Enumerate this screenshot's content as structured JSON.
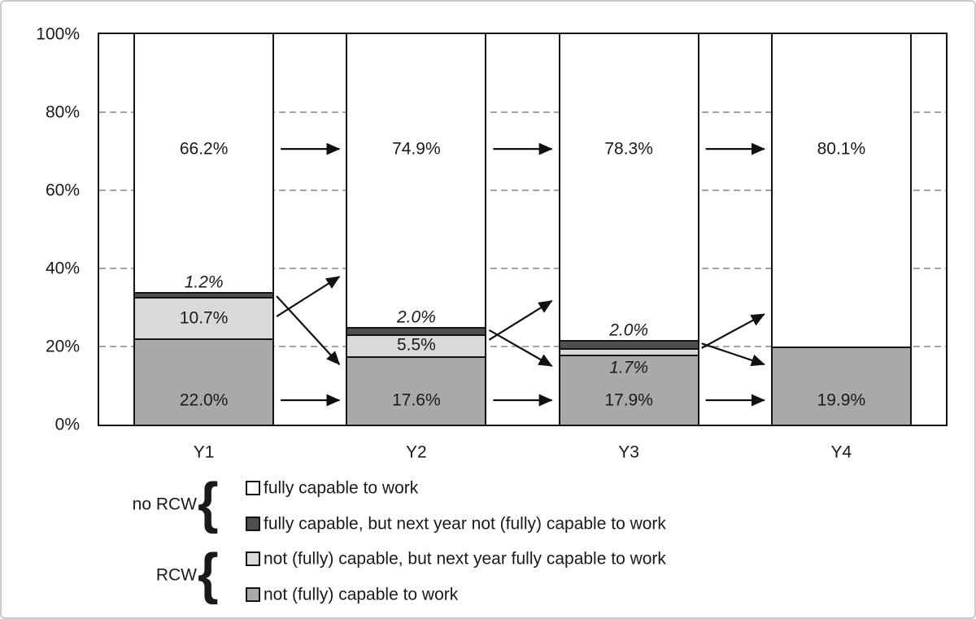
{
  "chart_data": {
    "type": "bar",
    "subtype": "stacked-100-percent",
    "title": "",
    "xlabel": "",
    "ylabel": "",
    "ylim": [
      0,
      100
    ],
    "grid": "dashed-horizontal",
    "gridlines_pct": [
      20,
      40,
      60,
      80
    ],
    "y_axis_ticks": [
      {
        "label": "0%",
        "pct": 0
      },
      {
        "label": "20%",
        "pct": 20
      },
      {
        "label": "40%",
        "pct": 40
      },
      {
        "label": "60%",
        "pct": 60
      },
      {
        "label": "80%",
        "pct": 80
      },
      {
        "label": "100%",
        "pct": 100
      }
    ],
    "categories": [
      "Y1",
      "Y2",
      "Y3",
      "Y4"
    ],
    "series": [
      {
        "key": "capable",
        "name": "fully capable to work",
        "color": "#ffffff",
        "values": [
          66.2,
          74.9,
          78.3,
          80.1
        ]
      },
      {
        "key": "to_not_capable",
        "name": "fully capable, but next year not (fully) capable to work",
        "color": "#4f4f4f",
        "values": [
          1.2,
          2.0,
          2.0,
          null
        ]
      },
      {
        "key": "to_capable",
        "name": "not (fully) capable, but next year fully capable to work",
        "color": "#d9d9d9",
        "values": [
          10.7,
          5.5,
          1.7,
          null
        ]
      },
      {
        "key": "not_capable",
        "name": "not (fully) capable to work",
        "color": "#a9a9a9",
        "values": [
          22.0,
          17.6,
          17.9,
          19.9
        ]
      }
    ],
    "colors": {
      "capable": "#ffffff",
      "to_not_capable": "#4f4f4f",
      "to_capable": "#d9d9d9",
      "not_capable": "#a9a9a9"
    },
    "bars": [
      {
        "category": "Y1",
        "segments": [
          {
            "series": "not_capable",
            "value": 22.0,
            "label": "22.0%",
            "placement": "bottom-band",
            "italic": false
          },
          {
            "series": "to_capable",
            "value": 10.7,
            "label": "10.7%",
            "placement": "center",
            "italic": false
          },
          {
            "series": "to_not_capable",
            "value": 1.2,
            "label": "1.2%",
            "placement": "above",
            "italic": true
          },
          {
            "series": "capable",
            "value": 66.2,
            "label": "66.2%",
            "placement": "top-band",
            "italic": false
          }
        ]
      },
      {
        "category": "Y2",
        "segments": [
          {
            "series": "not_capable",
            "value": 17.6,
            "label": "17.6%",
            "placement": "bottom-band",
            "italic": false
          },
          {
            "series": "to_capable",
            "value": 5.5,
            "label": "5.5%",
            "placement": "center",
            "italic": false
          },
          {
            "series": "to_not_capable",
            "value": 2.0,
            "label": "2.0%",
            "placement": "above",
            "italic": true
          },
          {
            "series": "capable",
            "value": 74.9,
            "label": "74.9%",
            "placement": "top-band",
            "italic": false
          }
        ]
      },
      {
        "category": "Y3",
        "segments": [
          {
            "series": "not_capable",
            "value": 17.9,
            "label": "17.9%",
            "placement": "bottom-band",
            "italic": false
          },
          {
            "series": "to_capable",
            "value": 1.7,
            "label": "1.7%",
            "placement": "below",
            "italic": true
          },
          {
            "series": "to_not_capable",
            "value": 2.0,
            "label": "2.0%",
            "placement": "above",
            "italic": true
          },
          {
            "series": "capable",
            "value": 78.3,
            "label": "78.3%",
            "placement": "top-band",
            "italic": false
          }
        ]
      },
      {
        "category": "Y4",
        "segments": [
          {
            "series": "not_capable",
            "value": 19.9,
            "label": "19.9%",
            "placement": "bottom-band",
            "italic": false
          },
          {
            "series": "capable",
            "value": 80.1,
            "label": "80.1%",
            "placement": "top-band",
            "italic": false
          }
        ]
      }
    ],
    "label_bands": {
      "top_pct": 70.6,
      "bottom_pct": 6.25
    },
    "arrows": [
      {
        "kind": "horizontal",
        "band": "top",
        "from_cat": 0,
        "to_cat": 1
      },
      {
        "kind": "horizontal",
        "band": "top",
        "from_cat": 1,
        "to_cat": 2
      },
      {
        "kind": "horizontal",
        "band": "top",
        "from_cat": 2,
        "to_cat": 3
      },
      {
        "kind": "horizontal",
        "band": "bottom",
        "from_cat": 0,
        "to_cat": 1
      },
      {
        "kind": "horizontal",
        "band": "bottom",
        "from_cat": 1,
        "to_cat": 2
      },
      {
        "kind": "horizontal",
        "band": "bottom",
        "from_cat": 2,
        "to_cat": 3
      },
      {
        "kind": "diagonal",
        "from_cat": 0,
        "from_pct": 27.7,
        "to_cat": 1,
        "to_pct": 37.9
      },
      {
        "kind": "diagonal",
        "from_cat": 0,
        "from_pct": 32.9,
        "to_cat": 1,
        "to_pct": 15.4
      },
      {
        "kind": "diagonal",
        "from_cat": 1,
        "from_pct": 21.7,
        "to_cat": 2,
        "to_pct": 31.7
      },
      {
        "kind": "diagonal",
        "from_cat": 1,
        "from_pct": 24.2,
        "to_cat": 2,
        "to_pct": 15.0
      },
      {
        "kind": "diagonal",
        "from_cat": 2,
        "from_pct": 19.6,
        "to_cat": 3,
        "to_pct": 28.3
      },
      {
        "kind": "diagonal",
        "from_cat": 2,
        "from_pct": 20.8,
        "to_cat": 3,
        "to_pct": 15.4
      }
    ],
    "legend": {
      "position": "bottom-left",
      "groups": [
        {
          "label": "no RCW",
          "brace": "{",
          "items": [
            {
              "swatch": "#ffffff",
              "text": "fully capable to work"
            },
            {
              "swatch": "#4f4f4f",
              "text": "fully capable, but next year not (fully) capable to work"
            }
          ]
        },
        {
          "label": "RCW",
          "brace": "{",
          "items": [
            {
              "swatch": "#d9d9d9",
              "text": "not (fully) capable, but next year fully capable to work"
            },
            {
              "swatch": "#a9a9a9",
              "text": "not (fully) capable to work"
            }
          ]
        }
      ]
    }
  }
}
